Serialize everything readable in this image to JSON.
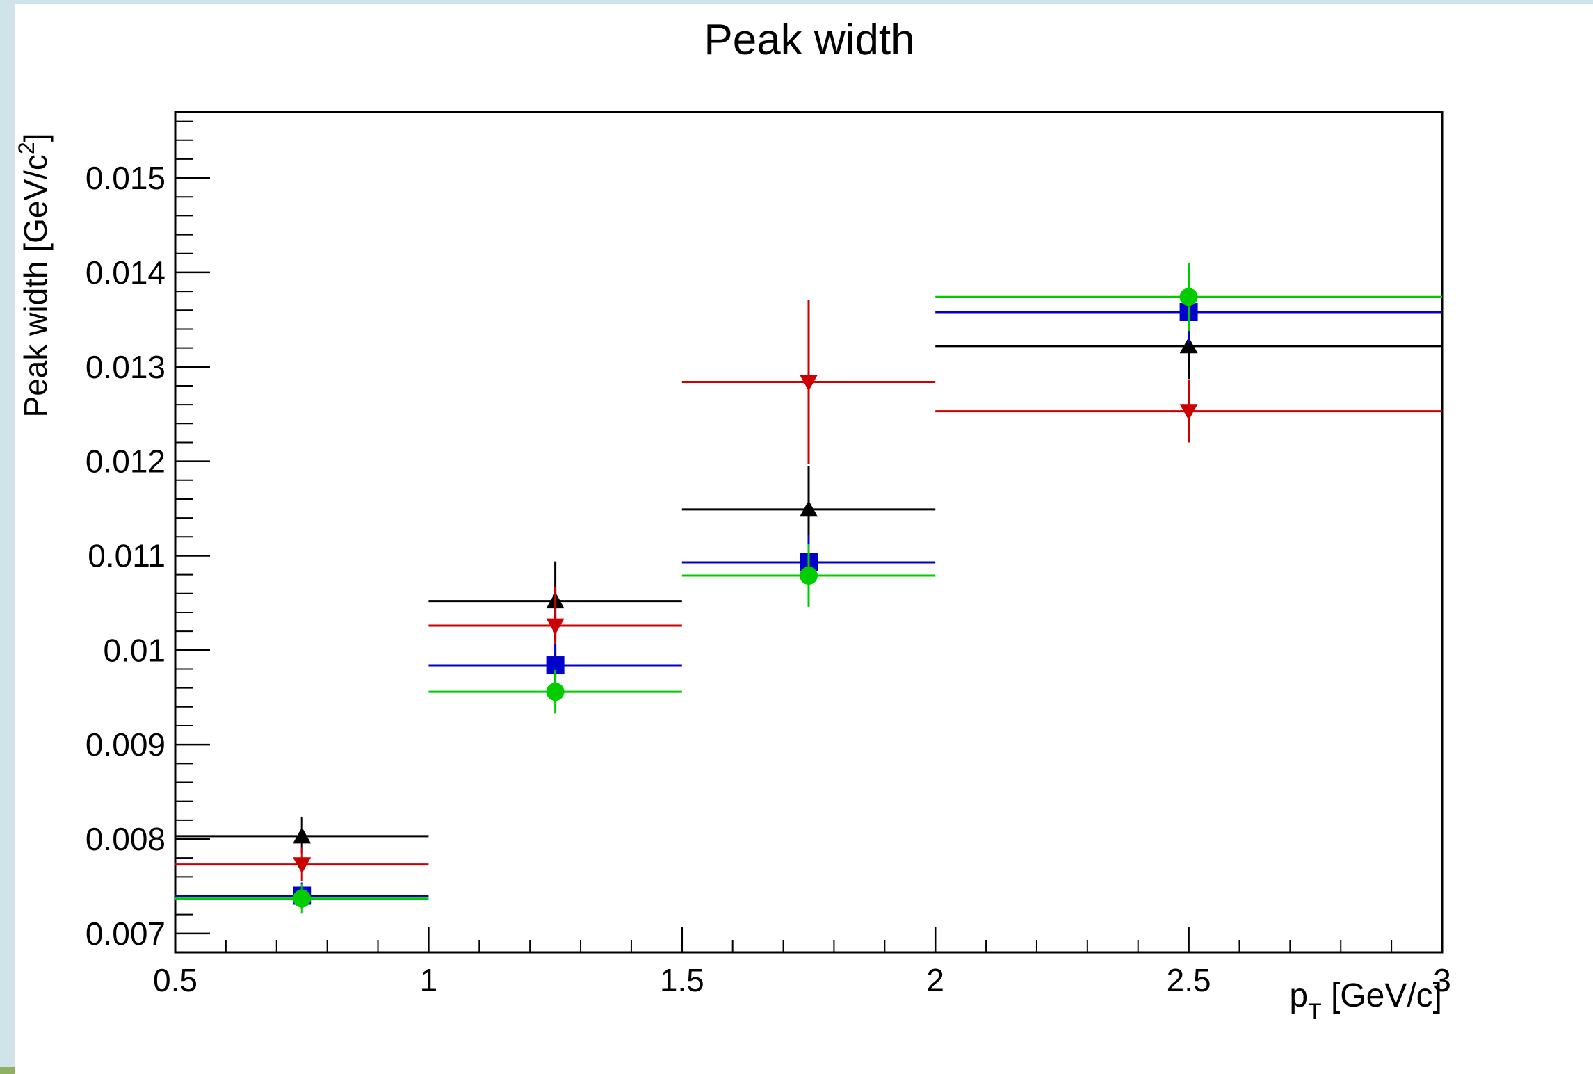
{
  "chart_data": {
    "type": "scatter",
    "title": "Peak width",
    "xlabel": "p_T [GeV/c]",
    "ylabel": "Peak width [GeV/c^2]",
    "xlim": [
      0.5,
      3
    ],
    "ylim": [
      0.0068,
      0.0157
    ],
    "x_ticks": [
      "0.5",
      "1",
      "1.5",
      "2",
      "2.5",
      "3"
    ],
    "y_ticks": [
      "0.007",
      "0.008",
      "0.009",
      "0.01",
      "0.011",
      "0.012",
      "0.013",
      "0.014",
      "0.015"
    ],
    "grid": false,
    "legend": "none",
    "series": [
      {
        "marker": "triangle-up",
        "color": "#000000",
        "points": [
          {
            "x": 0.75,
            "xlo": 0.5,
            "xhi": 1.0,
            "y": 0.00803,
            "ylo": 0.00785,
            "yhi": 0.00823
          },
          {
            "x": 1.25,
            "xlo": 1.0,
            "xhi": 1.5,
            "y": 0.01052,
            "ylo": 0.0101,
            "yhi": 0.01094
          },
          {
            "x": 1.75,
            "xlo": 1.5,
            "xhi": 2.0,
            "y": 0.01149,
            "ylo": 0.01103,
            "yhi": 0.01195
          },
          {
            "x": 2.5,
            "xlo": 2.0,
            "xhi": 3.0,
            "y": 0.01322,
            "ylo": 0.01287,
            "yhi": 0.01357
          }
        ]
      },
      {
        "marker": "triangle-down",
        "color": "#cc0000",
        "points": [
          {
            "x": 0.75,
            "xlo": 0.5,
            "xhi": 1.0,
            "y": 0.00773,
            "ylo": 0.00755,
            "yhi": 0.00791
          },
          {
            "x": 1.25,
            "xlo": 1.0,
            "xhi": 1.5,
            "y": 0.01026,
            "ylo": 0.00985,
            "yhi": 0.01067
          },
          {
            "x": 1.75,
            "xlo": 1.5,
            "xhi": 2.0,
            "y": 0.01284,
            "ylo": 0.01197,
            "yhi": 0.01371
          },
          {
            "x": 2.5,
            "xlo": 2.0,
            "xhi": 3.0,
            "y": 0.01253,
            "ylo": 0.0122,
            "yhi": 0.01286
          }
        ]
      },
      {
        "marker": "square",
        "color": "#0000cc",
        "points": [
          {
            "x": 0.75,
            "xlo": 0.5,
            "xhi": 1.0,
            "y": 0.0074,
            "ylo": 0.00726,
            "yhi": 0.00754
          },
          {
            "x": 1.25,
            "xlo": 1.0,
            "xhi": 1.5,
            "y": 0.00984,
            "ylo": 0.00962,
            "yhi": 0.01006
          },
          {
            "x": 1.75,
            "xlo": 1.5,
            "xhi": 2.0,
            "y": 0.01093,
            "ylo": 0.01064,
            "yhi": 0.01122
          },
          {
            "x": 2.5,
            "xlo": 2.0,
            "xhi": 3.0,
            "y": 0.01358,
            "ylo": 0.01325,
            "yhi": 0.01391
          }
        ]
      },
      {
        "marker": "circle",
        "color": "#00cc00",
        "points": [
          {
            "x": 0.75,
            "xlo": 0.5,
            "xhi": 1.0,
            "y": 0.00737,
            "ylo": 0.00721,
            "yhi": 0.00753
          },
          {
            "x": 1.25,
            "xlo": 1.0,
            "xhi": 1.5,
            "y": 0.00956,
            "ylo": 0.00933,
            "yhi": 0.00979
          },
          {
            "x": 1.75,
            "xlo": 1.5,
            "xhi": 2.0,
            "y": 0.01079,
            "ylo": 0.01046,
            "yhi": 0.01112
          },
          {
            "x": 2.5,
            "xlo": 2.0,
            "xhi": 3.0,
            "y": 0.01374,
            "ylo": 0.01338,
            "yhi": 0.0141
          }
        ]
      }
    ]
  }
}
